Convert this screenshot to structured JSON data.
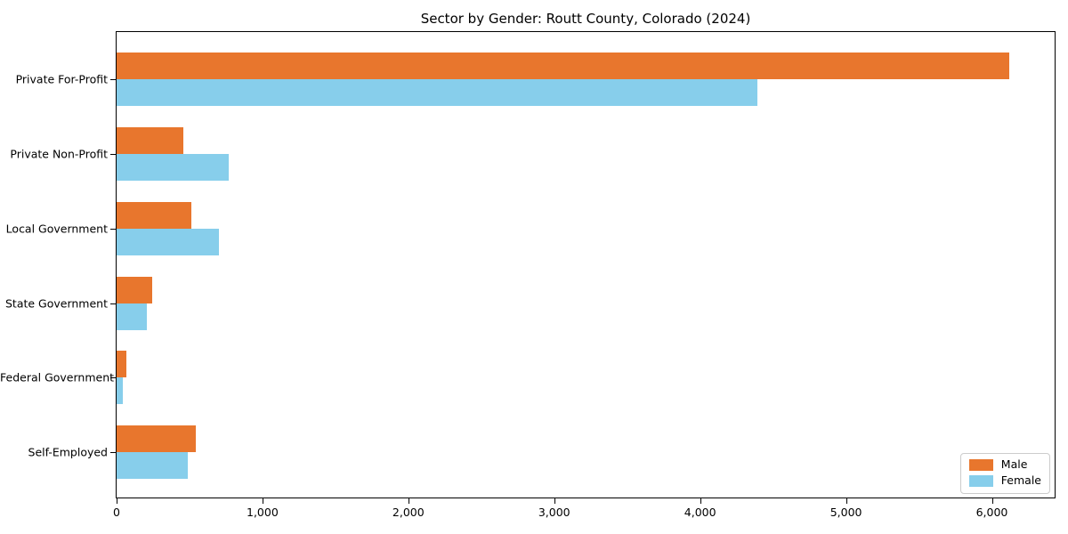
{
  "chart_data": {
    "type": "bar",
    "orientation": "horizontal",
    "title": "Sector by Gender: Routt County, Colorado (2024)",
    "categories": [
      "Private For-Profit",
      "Private Non-Profit",
      "Local Government",
      "State Government",
      "Federal Government",
      "Self-Employed"
    ],
    "series": [
      {
        "name": "Male",
        "color": "#E8762D",
        "values": [
          6120,
          460,
          510,
          245,
          70,
          545
        ]
      },
      {
        "name": "Female",
        "color": "#87CEEB",
        "values": [
          4390,
          770,
          700,
          205,
          42,
          485
        ]
      }
    ],
    "xlabel": "",
    "ylabel": "",
    "xlim": [
      0,
      6430
    ],
    "xticks": {
      "values": [
        0,
        1000,
        2000,
        3000,
        4000,
        5000,
        6000
      ],
      "labels": [
        "0",
        "1,000",
        "2,000",
        "3,000",
        "4,000",
        "5,000",
        "6,000"
      ]
    },
    "grid": false,
    "legend": {
      "position": "lower right"
    }
  }
}
